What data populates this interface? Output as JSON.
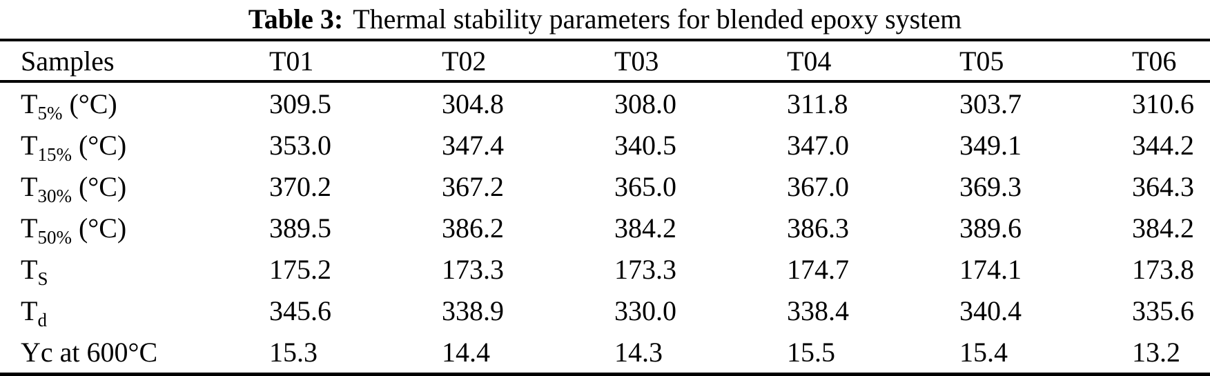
{
  "caption": {
    "label": "Table 3:",
    "title": "Thermal stability parameters for blended epoxy system"
  },
  "table": {
    "columns": [
      "Samples",
      "T01",
      "T02",
      "T03",
      "T04",
      "T05",
      "T06"
    ],
    "rows": [
      {
        "base": "T",
        "sub": "5%",
        "suffix": " (°C)",
        "values": [
          "309.5",
          "304.8",
          "308.0",
          "311.8",
          "303.7",
          "310.6"
        ]
      },
      {
        "base": "T",
        "sub": "15%",
        "suffix": " (°C)",
        "values": [
          "353.0",
          "347.4",
          "340.5",
          "347.0",
          "349.1",
          "344.2"
        ]
      },
      {
        "base": "T",
        "sub": "30%",
        "suffix": " (°C)",
        "values": [
          "370.2",
          "367.2",
          "365.0",
          "367.0",
          "369.3",
          "364.3"
        ]
      },
      {
        "base": "T",
        "sub": "50%",
        "suffix": " (°C)",
        "values": [
          "389.5",
          "386.2",
          "384.2",
          "386.3",
          "389.6",
          "384.2"
        ]
      },
      {
        "base": "T",
        "sub": "S",
        "suffix": "",
        "values": [
          "175.2",
          "173.3",
          "173.3",
          "174.7",
          "174.1",
          "173.8"
        ]
      },
      {
        "base": "T",
        "sub": "d",
        "suffix": "",
        "values": [
          "345.6",
          "338.9",
          "330.0",
          "338.4",
          "340.4",
          "335.6"
        ]
      },
      {
        "base": "Yc at 600°C",
        "sub": "",
        "suffix": "",
        "values": [
          "15.3",
          "14.4",
          "14.3",
          "15.5",
          "15.4",
          "13.2"
        ]
      }
    ]
  }
}
